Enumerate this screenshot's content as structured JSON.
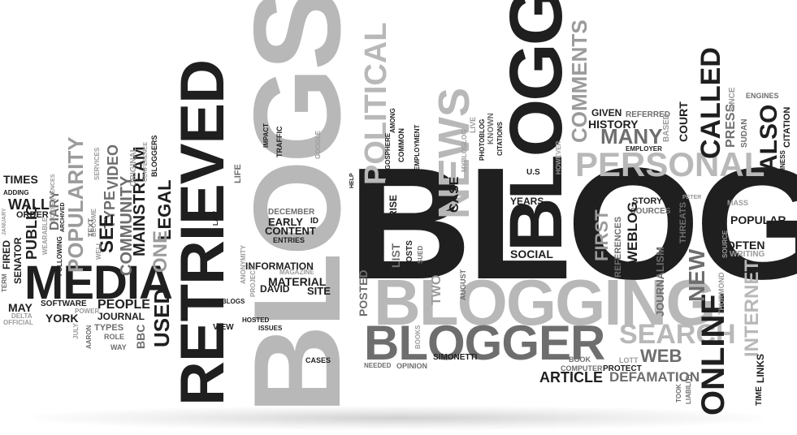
{
  "image": {
    "description": "",
    "words": {
      "blog": "BLOG",
      "blogs": "BLOGS",
      "retrieved": "RETRIEVED",
      "bloggers": "BLOGGERS",
      "blogging": "BLOGGING",
      "blogger": "BLOGGER",
      "media": "MEDIA",
      "personal": "PERSONAL",
      "news": "NEWS",
      "political": "POLITICAL",
      "search": "SEARCH",
      "web": "WEB",
      "online": "ONLINE",
      "internet": "INTERNET",
      "article": "ARTICLE",
      "defamation": "DEFAMATION",
      "called": "CALLED",
      "also": "ALSO",
      "many": "MANY",
      "comments": "COMMENTS",
      "history": "HISTORY",
      "given": "GIVEN",
      "referred": "REFERRED",
      "court": "COURT",
      "press": "PRESS",
      "since": "SINCE",
      "engines": "ENGINES",
      "citation": "CITATION",
      "sudan": "SUDAN",
      "business": "BUSINESS",
      "employer": "EMPLOYER",
      "based": "BASED",
      "popular": "POPULAR",
      "often": "OFTEN",
      "writing": "WRITING",
      "mass": "MASS",
      "source": "SOURCE",
      "threats": "THREATS",
      "peter": "PETER",
      "story": "STORY",
      "sources": "SOURCES",
      "first": "FIRST",
      "references": "REFERENCES",
      "weblog": "WEBLOG",
      "social": "SOCIAL",
      "journalism": "JOURNALISM",
      "new": "NEW",
      "thurmond": "THURMOND",
      "links": "LINKS",
      "time": "TIME",
      "took": "TOOK",
      "liability": "LIABILITY",
      "lott": "LOTT",
      "protect": "PROTECT",
      "computer": "COMPUTER",
      "book": "BOOK",
      "simonetti": "SIMONETTI",
      "opinion": "OPINION",
      "needed": "NEEDED",
      "cases": "CASES",
      "books": "BOOKS",
      "two": "TWO",
      "august": "AUGUST",
      "posted": "POSTED",
      "list": "LIST",
      "posts": "POSTS",
      "sued": "SUED",
      "rise": "RISE",
      "case": "CASE",
      "device": "DEVICE",
      "years": "YEARS",
      "us": "U.S",
      "however": "HOWEVER",
      "help": "HELP",
      "citations": "CITATIONS",
      "photoblog": "PHOTOBLOG",
      "live": "LIVE",
      "known": "KNOWN",
      "myblogblog": "MYBLOGLOG",
      "employment": "EMPLOYMENT",
      "common": "COMMON",
      "among": "AMONG",
      "blogosphere": "BLOGOSPHERE",
      "google": "GOOGLE",
      "impact": "IMPACT",
      "traffic": "TRAFFIC",
      "life": "LIFE",
      "law": "LAW",
      "december": "DECEMBER",
      "early": "EARLY",
      "id": "ID",
      "content": "CONTENT",
      "entries": "ENTRIES",
      "information": "INFORMATION",
      "material": "MATERIAL",
      "david": "DAVID",
      "site": "SITE",
      "magazine": "MAGAZINE",
      "anonymity": "ANONYMITY",
      "project": "PROJECT",
      "weblogs": "WEBLOGS",
      "view": "VIEW",
      "hosted": "HOSTED",
      "issues": "ISSUES",
      "used": "USED",
      "bbc": "BBC",
      "legal": "LEGAL",
      "one": "ONE",
      "mainstream": "MAINSTREAM",
      "community": "COMMUNITY",
      "bloggers_small": "BLOGGERS",
      "conference": "CONFERENCE",
      "original": "ORIGINAL",
      "video": "VIDEO",
      "type": "TYPE",
      "see": "SEE",
      "services": "SERVICES",
      "become": "BECOME",
      "text": "TEXT",
      "well": "WELL",
      "popularity": "POPULARITY",
      "diary": "DIARY",
      "people": "PEOPLE",
      "journal": "JOURNAL",
      "types": "TYPES",
      "role": "ROLE",
      "way": "WAY",
      "aaron": "AARON",
      "july": "JULY",
      "power": "POWER",
      "software": "SOFTWARE",
      "york": "YORK",
      "may": "MAY",
      "delta": "DELTA",
      "official": "OFFICIAL",
      "senator": "SENATOR",
      "term": "TERM",
      "fired": "FIRED",
      "following": "FOLLOWING",
      "public": "PUBLIC",
      "wearable": "WEARABLE",
      "order": "ORDER",
      "consequences": "CONSEQUENCES",
      "archived": "ARCHIVED",
      "wall": "WALL",
      "adding": "ADDING",
      "times": "TIMES",
      "january": "JANUARY"
    }
  }
}
